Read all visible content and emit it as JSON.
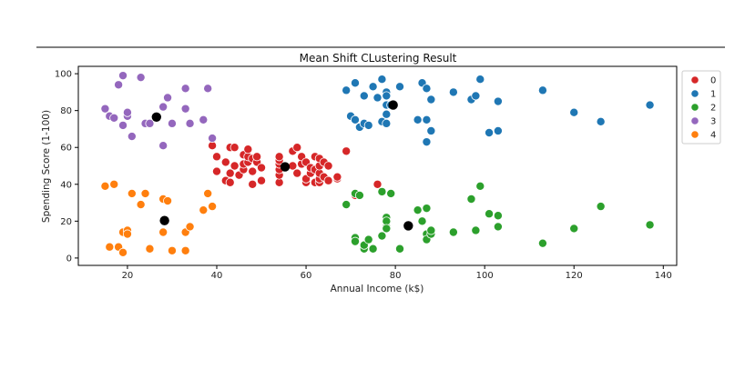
{
  "chart_data": {
    "type": "scatter",
    "title": "Mean Shift CLustering Result",
    "xlabel": "Annual Income (k$)",
    "ylabel": "Spending Score (1-100)",
    "xlim": [
      9,
      143
    ],
    "ylim": [
      -4,
      104
    ],
    "xticks": [
      "20",
      "40",
      "60",
      "80",
      "100",
      "120",
      "140"
    ],
    "yticks": [
      "0",
      "20",
      "40",
      "60",
      "80",
      "100"
    ],
    "grid": false,
    "legend_position": "outside-right",
    "series": [
      {
        "name": "0",
        "color": "#d62728",
        "x": [
          39,
          40,
          40,
          42,
          42,
          43,
          43,
          43,
          44,
          44,
          45,
          46,
          46,
          46,
          47,
          47,
          47,
          48,
          48,
          48,
          49,
          49,
          50,
          50,
          54,
          54,
          54,
          54,
          54,
          54,
          57,
          57,
          58,
          58,
          59,
          59,
          60,
          60,
          60,
          61,
          61,
          62,
          62,
          62,
          63,
          63,
          63,
          63,
          63,
          64,
          64,
          65,
          65,
          67,
          67,
          69,
          71,
          76
        ],
        "y": [
          61,
          55,
          47,
          42,
          52,
          60,
          41,
          46,
          50,
          60,
          45,
          48,
          51,
          56,
          52,
          55,
          59,
          40,
          47,
          54,
          52,
          55,
          42,
          49,
          41,
          45,
          48,
          51,
          53,
          55,
          50,
          58,
          46,
          60,
          51,
          55,
          41,
          43,
          52,
          46,
          49,
          41,
          48,
          55,
          41,
          43,
          46,
          50,
          54,
          44,
          52,
          42,
          50,
          43,
          44,
          58,
          34,
          40
        ]
      },
      {
        "name": "1",
        "color": "#1f77b4",
        "x": [
          69,
          70,
          71,
          71,
          72,
          73,
          73,
          74,
          75,
          76,
          77,
          77,
          78,
          78,
          78,
          78,
          78,
          79,
          81,
          85,
          86,
          87,
          87,
          87,
          88,
          88,
          93,
          97,
          98,
          99,
          101,
          103,
          103,
          113,
          120,
          126,
          137
        ],
        "y": [
          91,
          77,
          75,
          95,
          71,
          73,
          88,
          72,
          93,
          87,
          97,
          74,
          90,
          88,
          78,
          73,
          83,
          83,
          93,
          75,
          95,
          92,
          75,
          63,
          86,
          69,
          90,
          86,
          88,
          97,
          68,
          85,
          69,
          91,
          79,
          74,
          83
        ]
      },
      {
        "name": "2",
        "color": "#2ca02c",
        "x": [
          69,
          71,
          71,
          71,
          72,
          73,
          73,
          74,
          75,
          77,
          77,
          78,
          78,
          78,
          78,
          79,
          81,
          85,
          86,
          87,
          87,
          87,
          88,
          88,
          93,
          97,
          98,
          99,
          101,
          103,
          103,
          113,
          120,
          126,
          137
        ],
        "y": [
          29,
          35,
          11,
          9,
          34,
          5,
          7,
          10,
          5,
          12,
          36,
          22,
          17,
          20,
          16,
          35,
          5,
          26,
          20,
          27,
          13,
          10,
          13,
          15,
          14,
          32,
          15,
          39,
          24,
          17,
          23,
          8,
          16,
          28,
          18
        ]
      },
      {
        "name": "3",
        "color": "#9467bd",
        "x": [
          15,
          16,
          17,
          18,
          19,
          19,
          20,
          20,
          21,
          23,
          24,
          25,
          28,
          28,
          29,
          30,
          33,
          33,
          34,
          37,
          38,
          39
        ],
        "y": [
          81,
          77,
          76,
          94,
          72,
          99,
          77,
          79,
          66,
          98,
          73,
          73,
          82,
          61,
          87,
          73,
          81,
          92,
          73,
          75,
          92,
          65
        ]
      },
      {
        "name": "4",
        "color": "#ff7f0e",
        "x": [
          15,
          16,
          17,
          18,
          19,
          19,
          20,
          20,
          21,
          23,
          24,
          25,
          28,
          28,
          29,
          30,
          33,
          33,
          34,
          37,
          38,
          39
        ],
        "y": [
          39,
          6,
          40,
          6,
          3,
          14,
          15,
          13,
          35,
          29,
          35,
          5,
          14,
          32,
          31,
          4,
          4,
          14,
          17,
          26,
          35,
          28
        ]
      }
    ],
    "centroids": {
      "color": "#000000",
      "x": [
        26.5,
        79.5,
        28.3,
        55.3,
        82.9
      ],
      "y": [
        76.5,
        83.0,
        20.3,
        49.5,
        17.5
      ]
    }
  }
}
